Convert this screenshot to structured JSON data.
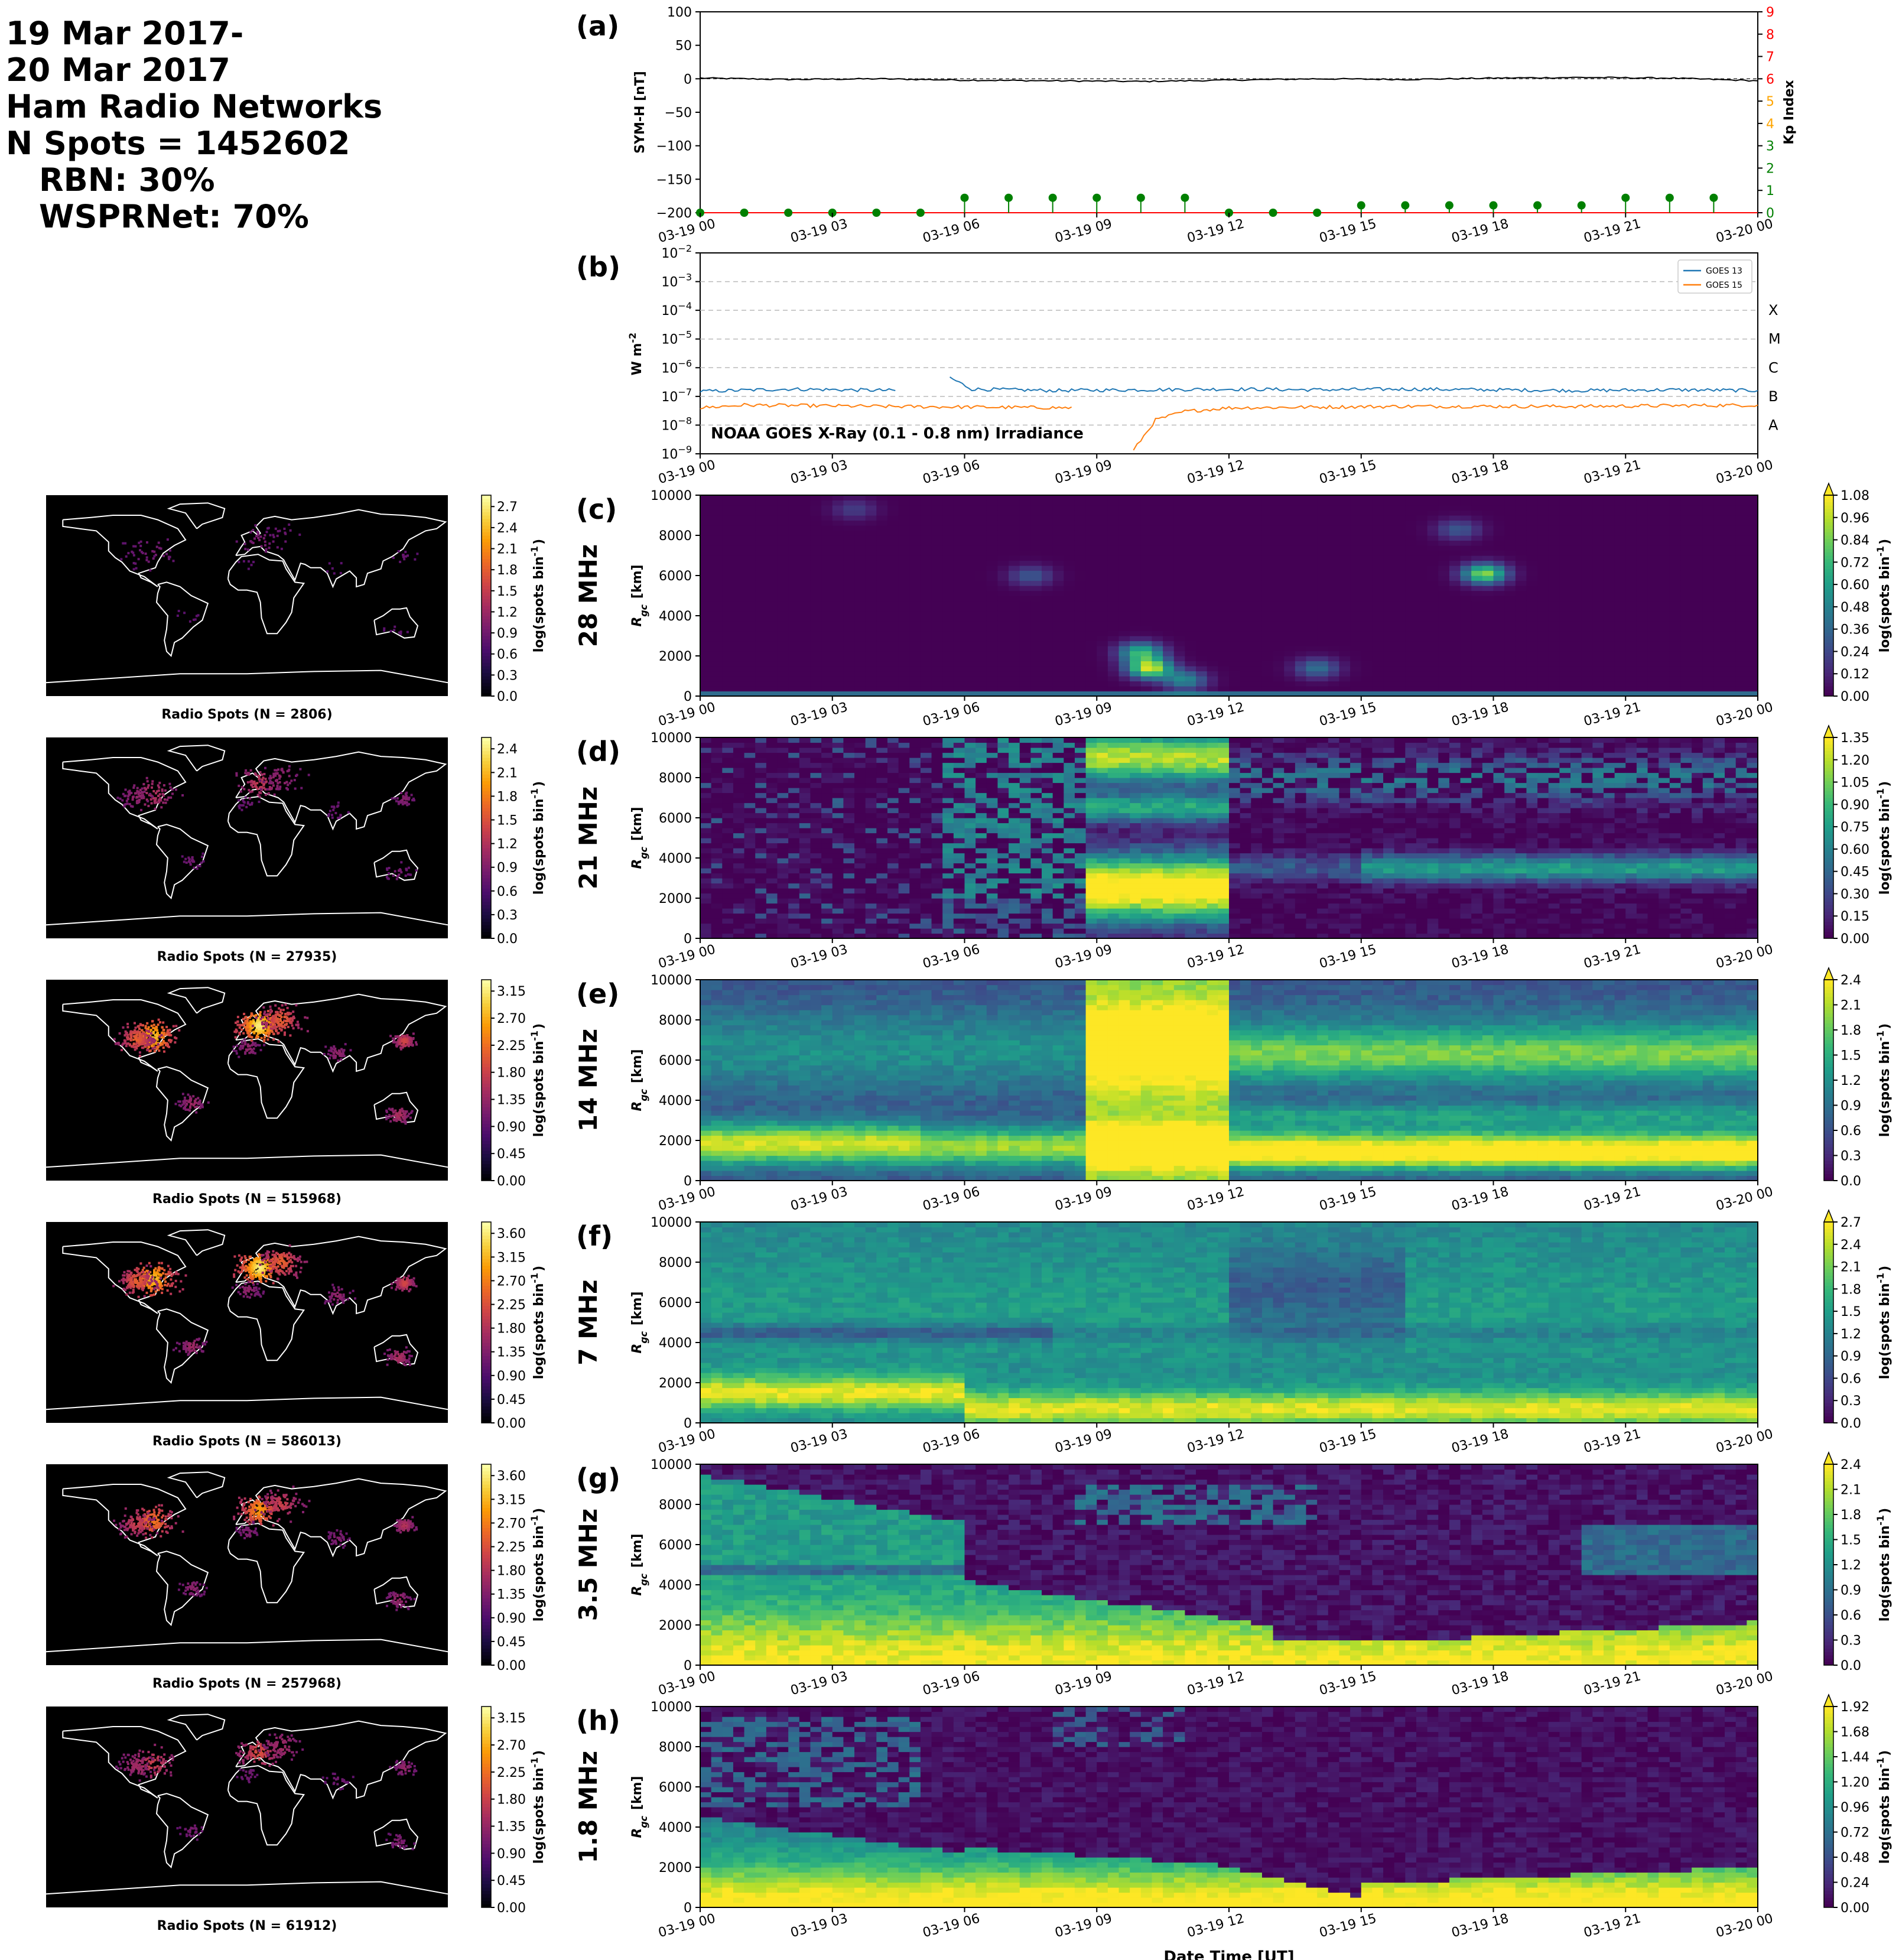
{
  "summary": {
    "date_line1": "19 Mar 2017-",
    "date_line2": "20 Mar 2017",
    "source": "Ham Radio Networks",
    "n_spots": "N Spots = 1452602",
    "rbn": "RBN: 30%",
    "wsprnet": "WSPRNet: 70%"
  },
  "colors": {
    "symh_line": "#000000",
    "kp_green": "#008000",
    "kp_red": "#ff0000",
    "kp_orange": "#ffa500",
    "goes13": "#1f77b4",
    "goes15": "#ff7f0e",
    "map_background": "#000000",
    "coastline": "#ffffff",
    "map_colormap": "inferno",
    "rgc_colormap": "viridis"
  },
  "chart_data": [
    {
      "panel": "(a)",
      "type": "line",
      "xlabel": "",
      "ylabel": "SYM-H [nT]",
      "y2label": "Kp Index",
      "ylim": [
        -200,
        100
      ],
      "y2lim": [
        0,
        9
      ],
      "yticks": [
        -200,
        -150,
        -100,
        -50,
        0,
        50,
        100
      ],
      "y2ticks": [
        0,
        1,
        2,
        3,
        4,
        5,
        6,
        7,
        8,
        9
      ],
      "xticks": [
        "03-19 00",
        "03-19 03",
        "03-19 06",
        "03-19 09",
        "03-19 12",
        "03-19 15",
        "03-19 18",
        "03-19 21",
        "03-20 00"
      ],
      "xlim": [
        "2017-03-19T00:00",
        "2017-03-20T00:00"
      ],
      "series": [
        {
          "axis": "left",
          "type": "line",
          "x": [
            "2017-03-19T00:00",
            "2017-03-19T02:00",
            "2017-03-19T04:00",
            "2017-03-19T06:00",
            "2017-03-19T08:00",
            "2017-03-19T10:00",
            "2017-03-19T12:00",
            "2017-03-19T14:00",
            "2017-03-19T16:00",
            "2017-03-19T18:00",
            "2017-03-19T20:00",
            "2017-03-19T22:00",
            "2017-03-20T00:00"
          ],
          "y": [
            1,
            -1,
            0,
            -2,
            -3,
            -4,
            -2,
            0,
            -1,
            1,
            2,
            1,
            -3
          ]
        },
        {
          "axis": "right",
          "type": "stem",
          "x": [
            "2017-03-19T00:00",
            "2017-03-19T01:00",
            "2017-03-19T02:00",
            "2017-03-19T03:00",
            "2017-03-19T04:00",
            "2017-03-19T05:00",
            "2017-03-19T06:00",
            "2017-03-19T07:00",
            "2017-03-19T08:00",
            "2017-03-19T09:00",
            "2017-03-19T10:00",
            "2017-03-19T11:00",
            "2017-03-19T12:00",
            "2017-03-19T13:00",
            "2017-03-19T14:00",
            "2017-03-19T15:00",
            "2017-03-19T16:00",
            "2017-03-19T17:00",
            "2017-03-19T18:00",
            "2017-03-19T19:00",
            "2017-03-19T20:00",
            "2017-03-19T21:00",
            "2017-03-19T22:00",
            "2017-03-19T23:00"
          ],
          "y": [
            0,
            0,
            0,
            0,
            0,
            0,
            0.67,
            0.67,
            0.67,
            0.67,
            0.67,
            0.67,
            0,
            0,
            0,
            0.33,
            0.33,
            0.33,
            0.33,
            0.33,
            0.33,
            0.67,
            0.67,
            0.67
          ]
        }
      ]
    },
    {
      "panel": "(b)",
      "type": "line",
      "title": "NOAA GOES X-Ray (0.1 - 0.8 nm) Irradiance",
      "ylabel": "W m$^{-2}$",
      "yscale": "log",
      "ylim": [
        1e-09,
        0.01
      ],
      "yticks": [
        "10^-9",
        "10^-8",
        "10^-7",
        "10^-6",
        "10^-5",
        "10^-4",
        "10^-3",
        "10^-2"
      ],
      "class_labels": [
        "X",
        "M",
        "C",
        "B",
        "A"
      ],
      "legend": "top-right",
      "xticks": [
        "03-19 00",
        "03-19 03",
        "03-19 06",
        "03-19 09",
        "03-19 12",
        "03-19 15",
        "03-19 18",
        "03-19 21",
        "03-20 00"
      ],
      "xlim": [
        "2017-03-19T00:00",
        "2017-03-20T00:00"
      ],
      "series": [
        {
          "name": "GOES 13",
          "x": [
            "2017-03-19T00:00",
            "2017-03-19T02:00",
            "2017-03-19T04:30",
            "2017-03-19T05:40",
            "2017-03-19T06:10",
            "2017-03-19T08:00",
            "2017-03-19T10:00",
            "2017-03-19T12:00",
            "2017-03-19T14:00",
            "2017-03-19T16:00",
            "2017-03-19T18:00",
            "2017-03-19T20:00",
            "2017-03-19T22:00",
            "2017-03-20T00:00"
          ],
          "y": [
            1.5e-07,
            1.8e-07,
            1.6e-07,
            4.5e-07,
            1.8e-07,
            1.6e-07,
            1.7e-07,
            1.8e-07,
            1.7e-07,
            1.8e-07,
            1.7e-07,
            1.6e-07,
            1.7e-07,
            1.6e-07
          ],
          "gaps": [
            [
              "2017-03-19T04:30",
              "2017-03-19T05:40"
            ]
          ]
        },
        {
          "name": "GOES 15",
          "x": [
            "2017-03-19T00:00",
            "2017-03-19T01:00",
            "2017-03-19T04:00",
            "2017-03-19T08:30",
            "2017-03-19T09:50",
            "2017-03-19T10:00",
            "2017-03-19T10:20",
            "2017-03-19T11:00",
            "2017-03-19T12:00",
            "2017-03-19T16:00",
            "2017-03-19T20:00",
            "2017-03-20T00:00"
          ],
          "y": [
            4e-08,
            5e-08,
            4.5e-08,
            4e-08,
            1.3e-09,
            3e-09,
            1.5e-08,
            3e-08,
            4e-08,
            4.5e-08,
            4.5e-08,
            5e-08
          ],
          "gaps": [
            [
              "2017-03-19T08:30",
              "2017-03-19T09:50"
            ]
          ]
        }
      ]
    },
    {
      "panel": "(c)",
      "band": "28 MHz",
      "type": "heatmap",
      "ylabel": "$R_{gc}$ [km]",
      "ylim": [
        0,
        10000
      ],
      "yticks": [
        0,
        2000,
        4000,
        6000,
        8000,
        10000
      ],
      "xticks": [
        "03-19 00",
        "03-19 03",
        "03-19 06",
        "03-19 09",
        "03-19 12",
        "03-19 15",
        "03-19 18",
        "03-19 21",
        "03-20 00"
      ],
      "colorbar_label": "log(spots bin$^{-1}$)",
      "colorbar_ticks": [
        "0.00",
        "0.12",
        "0.24",
        "0.36",
        "0.48",
        "0.60",
        "0.72",
        "0.84",
        "0.96",
        "1.08"
      ],
      "vmax": 1.08,
      "blobs": [
        {
          "t_hour": 10.2,
          "r_km": 1400,
          "value": 1.0
        },
        {
          "t_hour": 10.0,
          "r_km": 2200,
          "value": 0.7
        },
        {
          "t_hour": 11.0,
          "r_km": 800,
          "value": 0.5
        },
        {
          "t_hour": 17.8,
          "r_km": 6100,
          "value": 0.9
        },
        {
          "t_hour": 14.0,
          "r_km": 1400,
          "value": 0.4
        },
        {
          "t_hour": 7.5,
          "r_km": 6000,
          "value": 0.3
        },
        {
          "t_hour": 3.5,
          "r_km": 9300,
          "value": 0.2
        },
        {
          "t_hour": 17.2,
          "r_km": 8300,
          "value": 0.3
        }
      ],
      "map": {
        "caption": "Radio Spots (N = 2806)",
        "colorbar_ticks": [
          "0.0",
          "0.3",
          "0.6",
          "0.9",
          "1.2",
          "1.5",
          "1.8",
          "2.1",
          "2.4",
          "2.7"
        ],
        "colorbar_label": "log(spots bin$^{-1}$)"
      }
    },
    {
      "panel": "(d)",
      "band": "21 MHz",
      "type": "heatmap",
      "ylabel": "$R_{gc}$ [km]",
      "ylim": [
        0,
        10000
      ],
      "yticks": [
        0,
        2000,
        4000,
        6000,
        8000,
        10000
      ],
      "xticks": [
        "03-19 00",
        "03-19 03",
        "03-19 06",
        "03-19 09",
        "03-19 12",
        "03-19 15",
        "03-19 18",
        "03-19 21",
        "03-20 00"
      ],
      "colorbar_label": "log(spots bin$^{-1}$)",
      "colorbar_ticks": [
        "0.00",
        "0.15",
        "0.30",
        "0.45",
        "0.60",
        "0.75",
        "0.90",
        "1.05",
        "1.20",
        "1.35"
      ],
      "vmax": 1.35,
      "map": {
        "caption": "Radio Spots (N = 27935)",
        "colorbar_ticks": [
          "0.0",
          "0.3",
          "0.6",
          "0.9",
          "1.2",
          "1.5",
          "1.8",
          "2.1",
          "2.4"
        ],
        "colorbar_label": "log(spots bin$^{-1}$)"
      }
    },
    {
      "panel": "(e)",
      "band": "14 MHz",
      "type": "heatmap",
      "ylabel": "$R_{gc}$ [km]",
      "ylim": [
        0,
        10000
      ],
      "yticks": [
        0,
        2000,
        4000,
        6000,
        8000,
        10000
      ],
      "xticks": [
        "03-19 00",
        "03-19 03",
        "03-19 06",
        "03-19 09",
        "03-19 12",
        "03-19 15",
        "03-19 18",
        "03-19 21",
        "03-20 00"
      ],
      "colorbar_label": "log(spots bin$^{-1}$)",
      "colorbar_ticks": [
        "0.0",
        "0.3",
        "0.6",
        "0.9",
        "1.2",
        "1.5",
        "1.8",
        "2.1",
        "2.4"
      ],
      "vmax": 2.4,
      "map": {
        "caption": "Radio Spots (N = 515968)",
        "colorbar_ticks": [
          "0.00",
          "0.45",
          "0.90",
          "1.35",
          "1.80",
          "2.25",
          "2.70",
          "3.15"
        ],
        "colorbar_label": "log(spots bin$^{-1}$)"
      }
    },
    {
      "panel": "(f)",
      "band": "7 MHz",
      "type": "heatmap",
      "ylabel": "$R_{gc}$ [km]",
      "ylim": [
        0,
        10000
      ],
      "yticks": [
        0,
        2000,
        4000,
        6000,
        8000,
        10000
      ],
      "xticks": [
        "03-19 00",
        "03-19 03",
        "03-19 06",
        "03-19 09",
        "03-19 12",
        "03-19 15",
        "03-19 18",
        "03-19 21",
        "03-20 00"
      ],
      "colorbar_label": "log(spots bin$^{-1}$)",
      "colorbar_ticks": [
        "0.0",
        "0.3",
        "0.6",
        "0.9",
        "1.2",
        "1.5",
        "1.8",
        "2.1",
        "2.4",
        "2.7"
      ],
      "vmax": 2.7,
      "map": {
        "caption": "Radio Spots (N = 586013)",
        "colorbar_ticks": [
          "0.00",
          "0.45",
          "0.90",
          "1.35",
          "1.80",
          "2.25",
          "2.70",
          "3.15",
          "3.60"
        ],
        "colorbar_label": "log(spots bin$^{-1}$)"
      }
    },
    {
      "panel": "(g)",
      "band": "3.5 MHz",
      "type": "heatmap",
      "ylabel": "$R_{gc}$ [km]",
      "ylim": [
        0,
        10000
      ],
      "yticks": [
        0,
        2000,
        4000,
        6000,
        8000,
        10000
      ],
      "xticks": [
        "03-19 00",
        "03-19 03",
        "03-19 06",
        "03-19 09",
        "03-19 12",
        "03-19 15",
        "03-19 18",
        "03-19 21",
        "03-20 00"
      ],
      "colorbar_label": "log(spots bin$^{-1}$)",
      "colorbar_ticks": [
        "0.0",
        "0.3",
        "0.6",
        "0.9",
        "1.2",
        "1.5",
        "1.8",
        "2.1",
        "2.4"
      ],
      "vmax": 2.4,
      "map": {
        "caption": "Radio Spots (N = 257968)",
        "colorbar_ticks": [
          "0.00",
          "0.45",
          "0.90",
          "1.35",
          "1.80",
          "2.25",
          "2.70",
          "3.15",
          "3.60"
        ],
        "colorbar_label": "log(spots bin$^{-1}$)"
      }
    },
    {
      "panel": "(h)",
      "band": "1.8 MHz",
      "type": "heatmap",
      "ylabel": "$R_{gc}$ [km]",
      "ylim": [
        0,
        10000
      ],
      "yticks": [
        0,
        2000,
        4000,
        6000,
        8000,
        10000
      ],
      "xticks": [
        "03-19 00",
        "03-19 03",
        "03-19 06",
        "03-19 09",
        "03-19 12",
        "03-19 15",
        "03-19 18",
        "03-19 21",
        "03-20 00"
      ],
      "xlabel": "Date Time [UT]",
      "colorbar_label": "log(spots bin$^{-1}$)",
      "colorbar_ticks": [
        "0.00",
        "0.24",
        "0.48",
        "0.72",
        "0.96",
        "1.20",
        "1.44",
        "1.68",
        "1.92"
      ],
      "vmax": 1.92,
      "map": {
        "caption": "Radio Spots (N = 61912)",
        "colorbar_ticks": [
          "0.00",
          "0.45",
          "0.90",
          "1.35",
          "1.80",
          "2.25",
          "2.70",
          "3.15"
        ],
        "colorbar_label": "log(spots bin$^{-1}$)"
      }
    }
  ]
}
